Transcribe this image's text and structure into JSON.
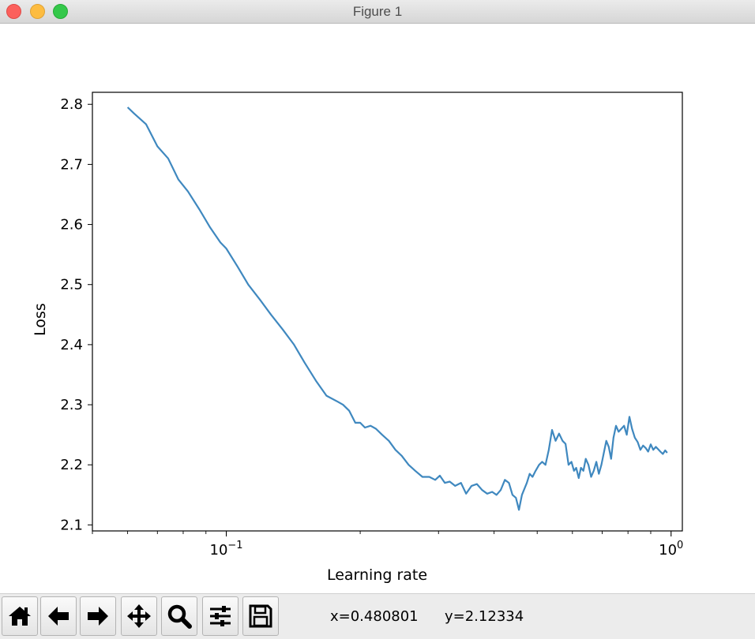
{
  "window": {
    "title": "Figure 1"
  },
  "toolbar": {
    "buttons": [
      {
        "id": "home",
        "icon": "home-icon"
      },
      {
        "id": "back",
        "icon": "arrow-left-icon"
      },
      {
        "id": "forward",
        "icon": "arrow-right-icon"
      },
      {
        "id": "pan",
        "icon": "move-icon"
      },
      {
        "id": "zoom",
        "icon": "magnifier-icon"
      },
      {
        "id": "configure",
        "icon": "sliders-icon"
      },
      {
        "id": "save",
        "icon": "floppy-disk-icon"
      }
    ],
    "x_readout": "x=0.480801",
    "y_readout": "y=2.12334"
  },
  "chart_data": {
    "type": "line",
    "xlabel": "Learning rate",
    "ylabel": "Loss",
    "xscale": "log",
    "xlim": [
      0.05,
      1.06
    ],
    "ylim": [
      2.09,
      2.82
    ],
    "yticks": [
      2.1,
      2.2,
      2.3,
      2.4,
      2.5,
      2.6,
      2.7,
      2.8
    ],
    "ytick_labels": [
      "2.1",
      "2.2",
      "2.3",
      "2.4",
      "2.5",
      "2.6",
      "2.7",
      "2.8"
    ],
    "xticks_major": [
      0.1,
      1.0
    ],
    "xtick_major_base": "10",
    "xtick_major_exponents": [
      "−1",
      "0"
    ],
    "grid": false,
    "line_color": "#3f88bf",
    "series": [
      {
        "x": [
          0.06,
          0.062,
          0.066,
          0.07,
          0.074,
          0.078,
          0.082,
          0.087,
          0.092,
          0.097,
          0.1,
          0.106,
          0.112,
          0.119,
          0.126,
          0.134,
          0.142,
          0.15,
          0.159,
          0.168,
          0.178,
          0.183,
          0.189,
          0.195,
          0.2,
          0.205,
          0.211,
          0.217,
          0.224,
          0.232,
          0.24,
          0.248,
          0.257,
          0.266,
          0.276,
          0.286,
          0.295,
          0.302,
          0.31,
          0.318,
          0.327,
          0.337,
          0.346,
          0.356,
          0.366,
          0.376,
          0.386,
          0.396,
          0.405,
          0.414,
          0.423,
          0.432,
          0.44,
          0.448,
          0.455,
          0.462,
          0.468,
          0.474,
          0.481,
          0.488,
          0.496,
          0.505,
          0.513,
          0.522,
          0.531,
          0.54,
          0.55,
          0.56,
          0.57,
          0.579,
          0.588,
          0.597,
          0.605,
          0.612,
          0.62,
          0.627,
          0.635,
          0.643,
          0.652,
          0.661,
          0.67,
          0.679,
          0.688,
          0.697,
          0.706,
          0.715,
          0.724,
          0.733,
          0.742,
          0.752,
          0.762,
          0.773,
          0.784,
          0.795,
          0.806,
          0.817,
          0.829,
          0.841,
          0.853,
          0.865,
          0.877,
          0.888,
          0.9,
          0.912,
          0.924,
          0.935,
          0.946,
          0.958,
          0.97,
          0.98
        ],
        "y": [
          2.795,
          2.785,
          2.767,
          2.73,
          2.71,
          2.675,
          2.655,
          2.625,
          2.595,
          2.57,
          2.56,
          2.53,
          2.5,
          2.475,
          2.45,
          2.425,
          2.4,
          2.37,
          2.34,
          2.315,
          2.305,
          2.3,
          2.29,
          2.27,
          2.27,
          2.262,
          2.265,
          2.26,
          2.25,
          2.24,
          2.225,
          2.215,
          2.2,
          2.19,
          2.18,
          2.18,
          2.175,
          2.182,
          2.17,
          2.172,
          2.165,
          2.17,
          2.152,
          2.165,
          2.168,
          2.158,
          2.152,
          2.155,
          2.15,
          2.158,
          2.175,
          2.17,
          2.15,
          2.145,
          2.125,
          2.15,
          2.16,
          2.17,
          2.185,
          2.18,
          2.19,
          2.2,
          2.205,
          2.2,
          2.225,
          2.258,
          2.24,
          2.252,
          2.24,
          2.235,
          2.2,
          2.205,
          2.19,
          2.195,
          2.178,
          2.195,
          2.19,
          2.21,
          2.2,
          2.18,
          2.19,
          2.205,
          2.185,
          2.2,
          2.22,
          2.24,
          2.23,
          2.21,
          2.245,
          2.265,
          2.255,
          2.26,
          2.265,
          2.25,
          2.28,
          2.26,
          2.245,
          2.238,
          2.225,
          2.232,
          2.228,
          2.222,
          2.234,
          2.225,
          2.23,
          2.226,
          2.222,
          2.218,
          2.224,
          2.22
        ]
      }
    ]
  }
}
